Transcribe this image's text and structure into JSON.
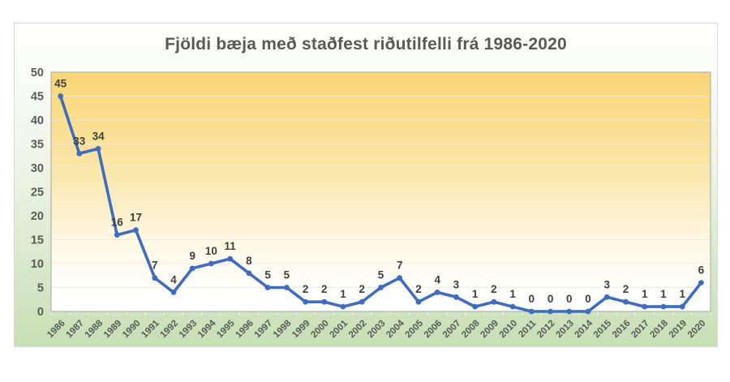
{
  "chart_data": {
    "type": "line",
    "title": "Fjöldi bæja með staðfest riðutilfelli frá 1986-2020",
    "categories": [
      "1986",
      "1987",
      "1988",
      "1989",
      "1990",
      "1991",
      "1992",
      "1993",
      "1994",
      "1995",
      "1996",
      "1997",
      "1998",
      "1999",
      "2000",
      "2001",
      "2002",
      "2003",
      "2004",
      "2005",
      "2006",
      "2007",
      "2008",
      "2009",
      "2010",
      "2011",
      "2012",
      "2013",
      "2014",
      "2015",
      "2016",
      "2017",
      "2018",
      "2019",
      "2020"
    ],
    "values": [
      45,
      33,
      34,
      16,
      17,
      7,
      4,
      9,
      10,
      11,
      8,
      5,
      5,
      2,
      2,
      1,
      2,
      5,
      7,
      2,
      4,
      3,
      1,
      2,
      1,
      0,
      0,
      0,
      0,
      3,
      2,
      1,
      1,
      1,
      6
    ],
    "data_labels": true,
    "ylim": [
      0,
      50
    ],
    "yticks": [
      0,
      5,
      10,
      15,
      20,
      25,
      30,
      35,
      40,
      45,
      50
    ],
    "grid": true,
    "legend": "none",
    "xlabel": "",
    "ylabel": "",
    "colors": {
      "line": "#3F6CBF",
      "marker": "#3F6CBF",
      "data_label": "#3F3F3F",
      "axis_label": "#595959",
      "title": "#595959",
      "gridline": "#F1EBDA",
      "plot_border": "#A6A6A6",
      "frame_border": "#D9D9D9",
      "plot_gradient_top": "#F9D574",
      "plot_gradient_mid": "#FBE6A8",
      "plot_gradient_low": "#FEF8E6",
      "plot_gradient_bottom": "#FFFFFF",
      "frame_gradient_top": "#FFFFFF",
      "frame_gradient_mid": "#EDF4E6",
      "frame_gradient_bottom": "#C7DFB4",
      "tick_mark": "rgba(255,255,255,0.75)"
    }
  }
}
